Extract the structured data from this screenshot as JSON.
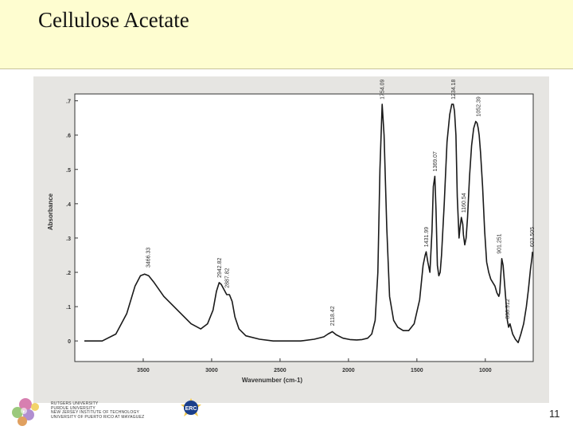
{
  "slide": {
    "title": "Cellulose Acetate",
    "page_number": "11",
    "footer_institutions": [
      "RUTGERS UNIVERSITY",
      "PURDUE UNIVERSITY",
      "NEW JERSEY INSTITUTE OF TECHNOLOGY",
      "UNIVERSITY OF PUERTO RICO AT MAYAGUEZ"
    ],
    "footer_logo_text": "ERC"
  },
  "chart_data": {
    "type": "line",
    "title": "",
    "xlabel": "Wavenumber (cm-1)",
    "ylabel": "Absorbance",
    "xlim": [
      4000,
      650
    ],
    "ylim": [
      -0.06,
      0.72
    ],
    "x_reversed": true,
    "grid": false,
    "x_ticks": [
      3500,
      3000,
      2500,
      2000,
      1500,
      1000
    ],
    "y_ticks": [
      0,
      0.1,
      0.2,
      0.3,
      0.4,
      0.5,
      0.6,
      0.7
    ],
    "y_tick_labels": [
      "0",
      ".1",
      ".2",
      ".3",
      ".4",
      ".5",
      ".6",
      ".7"
    ],
    "x_tick_labels": [
      "3500",
      "3000",
      "2500",
      "2000",
      "1500",
      "1000"
    ],
    "series": [
      {
        "name": "",
        "color": "#1a1a1a",
        "x": [
          3930,
          3800,
          3700,
          3620,
          3560,
          3520,
          3490,
          3460,
          3420,
          3350,
          3250,
          3150,
          3080,
          3030,
          2990,
          2965,
          2945,
          2930,
          2910,
          2890,
          2870,
          2850,
          2830,
          2800,
          2750,
          2650,
          2550,
          2450,
          2350,
          2250,
          2180,
          2150,
          2118,
          2090,
          2040,
          1990,
          1940,
          1900,
          1860,
          1830,
          1805,
          1785,
          1770,
          1754,
          1740,
          1720,
          1700,
          1670,
          1640,
          1600,
          1560,
          1520,
          1480,
          1455,
          1440,
          1432,
          1420,
          1405,
          1390,
          1380,
          1369,
          1360,
          1350,
          1340,
          1330,
          1320,
          1300,
          1280,
          1260,
          1245,
          1234,
          1225,
          1215,
          1205,
          1192,
          1185,
          1175,
          1165,
          1160,
          1150,
          1140,
          1130,
          1115,
          1100,
          1085,
          1070,
          1060,
          1052,
          1045,
          1035,
          1020,
          1005,
          990,
          975,
          960,
          945,
          930,
          915,
          901,
          895,
          890,
          880,
          870,
          860,
          850,
          839,
          830,
          820,
          800,
          780,
          760,
          740,
          720,
          700,
          685,
          670,
          660,
          655
        ],
        "y": [
          0.0,
          0.0,
          0.02,
          0.08,
          0.16,
          0.19,
          0.195,
          0.19,
          0.17,
          0.13,
          0.09,
          0.05,
          0.035,
          0.05,
          0.09,
          0.145,
          0.17,
          0.165,
          0.15,
          0.135,
          0.135,
          0.115,
          0.07,
          0.035,
          0.015,
          0.005,
          0.0,
          0.0,
          0.0,
          0.005,
          0.012,
          0.02,
          0.027,
          0.018,
          0.008,
          0.004,
          0.003,
          0.004,
          0.008,
          0.02,
          0.06,
          0.2,
          0.5,
          0.69,
          0.6,
          0.33,
          0.13,
          0.06,
          0.04,
          0.03,
          0.03,
          0.05,
          0.12,
          0.22,
          0.25,
          0.26,
          0.23,
          0.2,
          0.32,
          0.45,
          0.48,
          0.38,
          0.22,
          0.19,
          0.2,
          0.25,
          0.4,
          0.58,
          0.66,
          0.69,
          0.69,
          0.67,
          0.6,
          0.42,
          0.3,
          0.33,
          0.36,
          0.34,
          0.31,
          0.28,
          0.3,
          0.36,
          0.48,
          0.57,
          0.62,
          0.64,
          0.635,
          0.62,
          0.6,
          0.55,
          0.45,
          0.32,
          0.23,
          0.2,
          0.18,
          0.17,
          0.16,
          0.14,
          0.13,
          0.14,
          0.17,
          0.24,
          0.22,
          0.17,
          0.12,
          0.06,
          0.04,
          0.05,
          0.02,
          0.005,
          -0.005,
          0.02,
          0.05,
          0.1,
          0.15,
          0.21,
          0.24,
          0.26
        ]
      }
    ],
    "peak_annotations": [
      {
        "label": "3466.33",
        "x": 3466,
        "y": 0.2
      },
      {
        "label": "2942.82",
        "x": 2943,
        "y": 0.17
      },
      {
        "label": "2887.82",
        "x": 2888,
        "y": 0.14
      },
      {
        "label": "2118.42",
        "x": 2118,
        "y": 0.03
      },
      {
        "label": "1754.09",
        "x": 1754,
        "y": 0.69
      },
      {
        "label": "1431.99",
        "x": 1432,
        "y": 0.26
      },
      {
        "label": "1369.07",
        "x": 1369,
        "y": 0.48
      },
      {
        "label": "1234.18",
        "x": 1234,
        "y": 0.69
      },
      {
        "label": "1160.54",
        "x": 1160,
        "y": 0.36
      },
      {
        "label": "1052.39",
        "x": 1052,
        "y": 0.64
      },
      {
        "label": "901.251",
        "x": 901,
        "y": 0.24
      },
      {
        "label": "838.912",
        "x": 839,
        "y": 0.05
      },
      {
        "label": "603.505",
        "x": 660,
        "y": 0.26
      }
    ]
  }
}
